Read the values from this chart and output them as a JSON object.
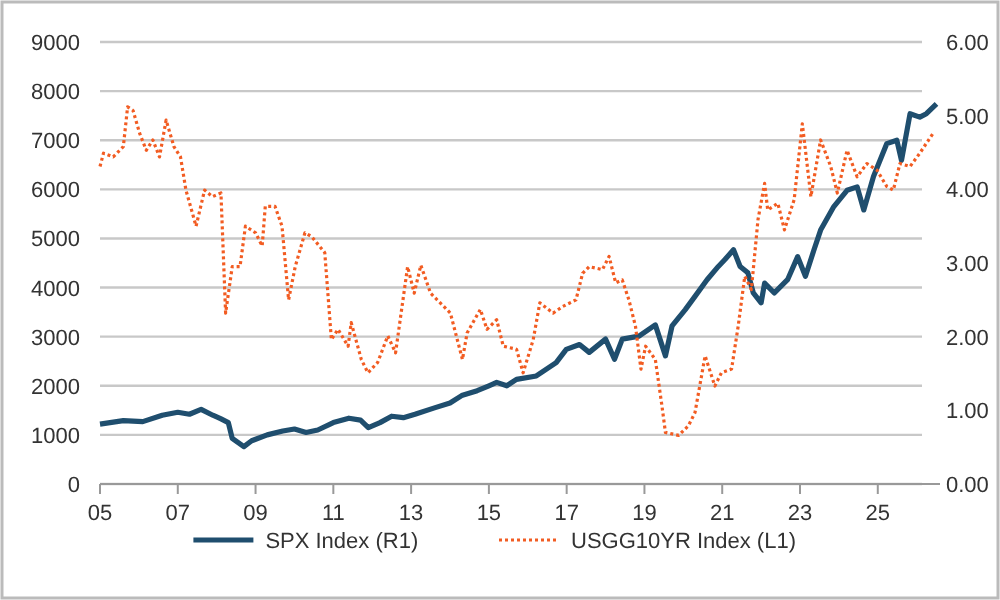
{
  "chart_data": {
    "type": "line",
    "legend": "bottom",
    "grid": "y",
    "xlim": [
      2005,
      2026.6
    ],
    "xticks": [
      {
        "value": 2005,
        "label": "05"
      },
      {
        "value": 2007,
        "label": "07"
      },
      {
        "value": 2009,
        "label": "09"
      },
      {
        "value": 2011,
        "label": "11"
      },
      {
        "value": 2013,
        "label": "13"
      },
      {
        "value": 2015,
        "label": "15"
      },
      {
        "value": 2017,
        "label": "17"
      },
      {
        "value": 2019,
        "label": "19"
      },
      {
        "value": 2021,
        "label": "21"
      },
      {
        "value": 2023,
        "label": "23"
      },
      {
        "value": 2025,
        "label": "25"
      }
    ],
    "ylim": [
      0,
      9000
    ],
    "yticks": [
      0,
      1000,
      2000,
      3000,
      4000,
      5000,
      6000,
      7000,
      8000,
      9000
    ],
    "y2lim": [
      0,
      6
    ],
    "y2ticks": [
      {
        "value": 0,
        "label": "0.00"
      },
      {
        "value": 1,
        "label": "1.00"
      },
      {
        "value": 2,
        "label": "2.00"
      },
      {
        "value": 3,
        "label": "3.00"
      },
      {
        "value": 4,
        "label": "4.00"
      },
      {
        "value": 5,
        "label": "5.00"
      },
      {
        "value": 6,
        "label": "6.00"
      }
    ],
    "series": [
      {
        "name": "SPX Index (R1)",
        "color": "#1f4e6e",
        "line_style": "solid",
        "x": [
          2005.0,
          2005.6,
          2006.1,
          2006.6,
          2007.0,
          2007.3,
          2007.6,
          2007.9,
          2008.1,
          2008.3,
          2008.4,
          2008.7,
          2008.9,
          2009.3,
          2009.7,
          2010.0,
          2010.3,
          2010.6,
          2011.0,
          2011.4,
          2011.7,
          2011.9,
          2012.2,
          2012.5,
          2012.8,
          2013.1,
          2013.6,
          2014.0,
          2014.3,
          2014.7,
          2015.0,
          2015.2,
          2015.46,
          2015.71,
          2016.22,
          2016.73,
          2016.99,
          2017.33,
          2017.58,
          2018.0,
          2018.23,
          2018.43,
          2018.86,
          2019.28,
          2019.54,
          2019.71,
          2020.05,
          2020.3,
          2020.61,
          2020.9,
          2021.07,
          2021.29,
          2021.46,
          2021.66,
          2021.8,
          2022.0,
          2022.09,
          2022.34,
          2022.68,
          2022.94,
          2023.14,
          2023.36,
          2023.53,
          2023.87,
          2024.21,
          2024.47,
          2024.64,
          2024.89,
          2025.23,
          2025.49,
          2025.61,
          2025.83,
          2026.08,
          2026.25,
          2026.51
        ],
        "values": [
          1220,
          1290,
          1270,
          1400,
          1460,
          1420,
          1520,
          1400,
          1330,
          1250,
          930,
          760,
          880,
          1000,
          1080,
          1120,
          1050,
          1100,
          1250,
          1340,
          1300,
          1150,
          1250,
          1380,
          1350,
          1420,
          1550,
          1650,
          1800,
          1900,
          2000,
          2070,
          2000,
          2130,
          2200,
          2470,
          2740,
          2840,
          2680,
          2950,
          2540,
          2950,
          3010,
          3240,
          2610,
          3220,
          3550,
          3820,
          4160,
          4430,
          4570,
          4770,
          4430,
          4300,
          3890,
          3690,
          4090,
          3890,
          4160,
          4630,
          4230,
          4770,
          5170,
          5650,
          5980,
          6050,
          5580,
          6260,
          6930,
          7000,
          6590,
          7540,
          7470,
          7540,
          7740
        ]
      },
      {
        "name": "USGG10YR Index (L1)",
        "color": "#f25c22",
        "axis": "y2",
        "line_style": "dotted",
        "x": [
          2005.0,
          2005.09,
          2005.34,
          2005.6,
          2005.71,
          2005.85,
          2006.02,
          2006.19,
          2006.36,
          2006.53,
          2006.7,
          2006.9,
          2007.07,
          2007.21,
          2007.47,
          2007.69,
          2007.89,
          2008.11,
          2008.23,
          2008.4,
          2008.6,
          2008.74,
          2009.0,
          2009.17,
          2009.25,
          2009.5,
          2009.68,
          2009.85,
          2010.02,
          2010.27,
          2010.44,
          2010.78,
          2010.95,
          2011.12,
          2011.38,
          2011.46,
          2011.72,
          2011.89,
          2012.14,
          2012.4,
          2012.6,
          2012.91,
          2013.08,
          2013.25,
          2013.5,
          2013.84,
          2014.01,
          2014.32,
          2014.44,
          2014.78,
          2014.95,
          2015.2,
          2015.37,
          2015.71,
          2015.88,
          2016.14,
          2016.31,
          2016.65,
          2016.9,
          2017.24,
          2017.41,
          2017.58,
          2017.92,
          2018.09,
          2018.26,
          2018.43,
          2018.6,
          2018.77,
          2018.91,
          2019.03,
          2019.28,
          2019.45,
          2019.54,
          2019.88,
          2020.13,
          2020.3,
          2020.56,
          2020.81,
          2020.98,
          2021.24,
          2021.41,
          2021.58,
          2021.75,
          2021.92,
          2022.09,
          2022.17,
          2022.43,
          2022.6,
          2022.85,
          2023.06,
          2023.28,
          2023.53,
          2023.79,
          2023.96,
          2024.21,
          2024.47,
          2024.72,
          2024.98,
          2025.23,
          2025.4,
          2025.57,
          2025.83,
          2026.08,
          2026.42
        ],
        "values": [
          4.31,
          4.49,
          4.44,
          4.58,
          5.12,
          5.07,
          4.76,
          4.53,
          4.67,
          4.44,
          4.94,
          4.58,
          4.44,
          3.99,
          3.5,
          3.99,
          3.9,
          3.95,
          2.32,
          2.95,
          2.95,
          3.5,
          3.41,
          3.23,
          3.77,
          3.77,
          3.5,
          2.5,
          2.95,
          3.41,
          3.36,
          3.14,
          1.96,
          2.1,
          1.87,
          2.19,
          1.69,
          1.51,
          1.65,
          2.01,
          1.78,
          2.95,
          2.59,
          2.97,
          2.59,
          2.41,
          2.32,
          1.69,
          2.05,
          2.37,
          2.1,
          2.23,
          1.87,
          1.83,
          1.51,
          1.96,
          2.46,
          2.32,
          2.41,
          2.5,
          2.86,
          2.95,
          2.91,
          3.09,
          2.73,
          2.77,
          2.5,
          2.14,
          1.56,
          1.87,
          1.69,
          1.06,
          0.7,
          0.66,
          0.79,
          0.97,
          1.74,
          1.33,
          1.51,
          1.56,
          2.14,
          2.82,
          2.64,
          3.59,
          4.08,
          3.72,
          3.81,
          3.45,
          3.86,
          4.89,
          3.9,
          4.67,
          4.31,
          3.95,
          4.53,
          4.17,
          4.35,
          4.26,
          4.04,
          3.99,
          4.35,
          4.31,
          4.49,
          4.76
        ]
      }
    ]
  }
}
